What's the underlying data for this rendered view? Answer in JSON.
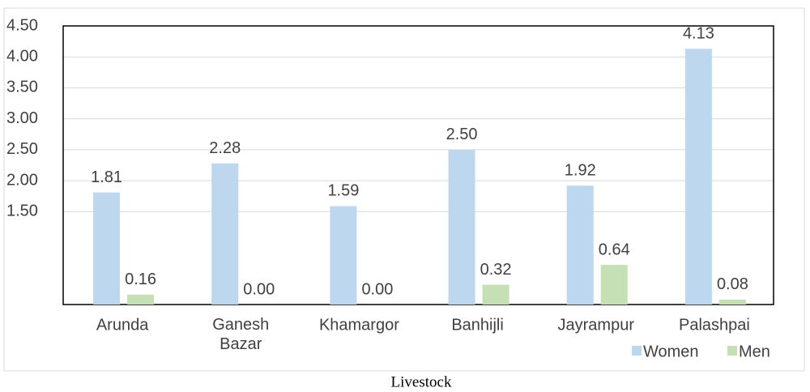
{
  "chart_data": {
    "type": "bar",
    "x_label": "Livestock",
    "categories": [
      "Arunda",
      "Ganesh Bazar",
      "Khamargor",
      "Banhijli",
      "Jayrampur",
      "Palashpai"
    ],
    "series": [
      {
        "name": "Women",
        "color": "#bdd7ee",
        "values": [
          1.81,
          2.28,
          1.59,
          2.5,
          1.92,
          4.13
        ],
        "value_labels": [
          "1.81",
          "2.28",
          "1.59",
          "2.50",
          "1.92",
          "4.13"
        ]
      },
      {
        "name": "Men",
        "color": "#c5e0b4",
        "values": [
          0.16,
          0.0,
          0.0,
          0.32,
          0.64,
          0.08
        ],
        "value_labels": [
          "0.16",
          "0.00",
          "0.00",
          "0.32",
          "0.64",
          "0.08"
        ]
      }
    ],
    "ylim": [
      0,
      4.5
    ],
    "yticks": [
      {
        "value": 1.5,
        "label": "1.50"
      },
      {
        "value": 2,
        "label": "2.00"
      },
      {
        "value": 2.5,
        "label": "2.50"
      },
      {
        "value": 3,
        "label": "3.00"
      },
      {
        "value": 3.5,
        "label": "3.50"
      },
      {
        "value": 4,
        "label": "4.00"
      },
      {
        "value": 4.5,
        "label": "4.50"
      }
    ],
    "grid": true,
    "legend": "bottom-right"
  }
}
